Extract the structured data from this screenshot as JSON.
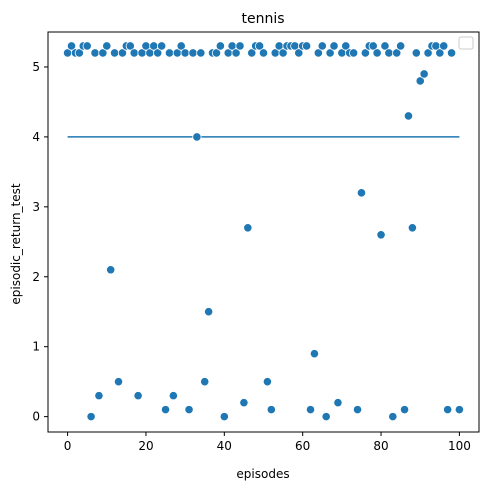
{
  "chart_data": {
    "type": "scatter",
    "title": "tennis",
    "xlabel": "episodes",
    "ylabel": "episodic_return_test",
    "xlim": [
      -5,
      105
    ],
    "ylim": [
      -0.22,
      5.5
    ],
    "xticks": [
      0,
      20,
      40,
      60,
      80,
      100
    ],
    "yticks": [
      0,
      1,
      2,
      3,
      4,
      5
    ],
    "grid": false,
    "legend": "top-right (empty)",
    "point_color": "#1f77b4",
    "reference_line": {
      "y": 4.0,
      "x_start": 0,
      "x_end": 100,
      "color": "#1f77b4"
    },
    "points": [
      [
        0,
        5.2
      ],
      [
        1,
        5.3
      ],
      [
        2,
        5.2
      ],
      [
        3,
        5.2
      ],
      [
        4,
        5.3
      ],
      [
        5,
        5.3
      ],
      [
        6,
        0.0
      ],
      [
        7,
        5.2
      ],
      [
        8,
        0.3
      ],
      [
        9,
        5.2
      ],
      [
        10,
        5.3
      ],
      [
        11,
        2.1
      ],
      [
        12,
        5.2
      ],
      [
        13,
        0.5
      ],
      [
        14,
        5.2
      ],
      [
        15,
        5.3
      ],
      [
        16,
        5.3
      ],
      [
        17,
        5.2
      ],
      [
        18,
        0.3
      ],
      [
        19,
        5.2
      ],
      [
        20,
        5.3
      ],
      [
        21,
        5.2
      ],
      [
        22,
        5.3
      ],
      [
        23,
        5.2
      ],
      [
        24,
        5.3
      ],
      [
        25,
        0.1
      ],
      [
        26,
        5.2
      ],
      [
        27,
        0.3
      ],
      [
        28,
        5.2
      ],
      [
        29,
        5.3
      ],
      [
        30,
        5.2
      ],
      [
        31,
        0.1
      ],
      [
        32,
        5.2
      ],
      [
        33,
        4.0
      ],
      [
        34,
        5.2
      ],
      [
        35,
        0.5
      ],
      [
        36,
        1.5
      ],
      [
        37,
        5.2
      ],
      [
        38,
        5.2
      ],
      [
        39,
        5.3
      ],
      [
        40,
        0.0
      ],
      [
        41,
        5.2
      ],
      [
        42,
        5.3
      ],
      [
        43,
        5.2
      ],
      [
        44,
        5.3
      ],
      [
        45,
        0.2
      ],
      [
        46,
        2.7
      ],
      [
        47,
        5.2
      ],
      [
        48,
        5.3
      ],
      [
        49,
        5.3
      ],
      [
        50,
        5.2
      ],
      [
        51,
        0.5
      ],
      [
        52,
        0.1
      ],
      [
        53,
        5.2
      ],
      [
        54,
        5.3
      ],
      [
        55,
        5.2
      ],
      [
        56,
        5.3
      ],
      [
        57,
        5.3
      ],
      [
        58,
        5.3
      ],
      [
        59,
        5.2
      ],
      [
        60,
        5.3
      ],
      [
        61,
        5.3
      ],
      [
        62,
        0.1
      ],
      [
        63,
        0.9
      ],
      [
        64,
        5.2
      ],
      [
        65,
        5.3
      ],
      [
        66,
        0.0
      ],
      [
        67,
        5.2
      ],
      [
        68,
        5.3
      ],
      [
        69,
        0.2
      ],
      [
        70,
        5.2
      ],
      [
        71,
        5.3
      ],
      [
        72,
        5.2
      ],
      [
        73,
        5.2
      ],
      [
        74,
        0.1
      ],
      [
        75,
        3.2
      ],
      [
        76,
        5.2
      ],
      [
        77,
        5.3
      ],
      [
        78,
        5.3
      ],
      [
        79,
        5.2
      ],
      [
        80,
        2.6
      ],
      [
        81,
        5.3
      ],
      [
        82,
        5.2
      ],
      [
        83,
        0.0
      ],
      [
        84,
        5.2
      ],
      [
        85,
        5.3
      ],
      [
        86,
        0.1
      ],
      [
        87,
        4.3
      ],
      [
        88,
        2.7
      ],
      [
        89,
        5.2
      ],
      [
        90,
        4.8
      ],
      [
        91,
        4.9
      ],
      [
        92,
        5.2
      ],
      [
        93,
        5.3
      ],
      [
        94,
        5.3
      ],
      [
        95,
        5.2
      ],
      [
        96,
        5.3
      ],
      [
        97,
        0.1
      ],
      [
        98,
        5.2
      ],
      [
        100,
        0.1
      ]
    ]
  }
}
